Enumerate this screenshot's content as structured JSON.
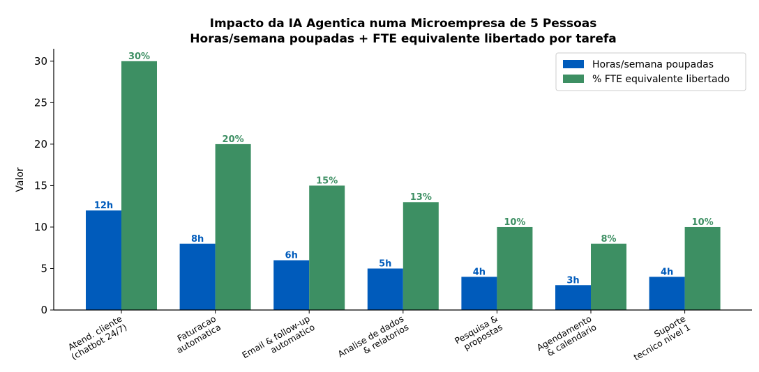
{
  "chart_data": {
    "type": "bar",
    "title": "Impacto da IA Agentica numa Microempresa de 5 Pessoas",
    "subtitle": "Horas/semana poupadas + FTE equivalente libertado por tarefa",
    "ylabel": "Valor",
    "xlabel": "",
    "ylim": [
      0,
      31.5
    ],
    "yticks": [
      "0",
      "5",
      "10",
      "15",
      "20",
      "25",
      "30"
    ],
    "categories": [
      [
        "Atend. cliente",
        "(chatbot 24/7)"
      ],
      [
        "Faturacao",
        "automatica"
      ],
      [
        "Email & follow-up",
        "automatico"
      ],
      [
        "Analise de dados",
        "& relatorios"
      ],
      [
        "Pesquisa &",
        "propostas"
      ],
      [
        "Agendamento",
        "& calendario"
      ],
      [
        "Suporte",
        "tecnico nivel 1"
      ]
    ],
    "series": [
      {
        "name": "Horas/semana poupadas",
        "color": "#005bbb",
        "values": [
          12,
          8,
          6,
          5,
          4,
          3,
          4
        ],
        "labels": [
          "12h",
          "8h",
          "6h",
          "5h",
          "4h",
          "3h",
          "4h"
        ]
      },
      {
        "name": "% FTE equivalente libertado",
        "color": "#3d8f63",
        "values": [
          30,
          20,
          15,
          13,
          10,
          8,
          10
        ],
        "labels": [
          "30%",
          "20%",
          "15%",
          "13%",
          "10%",
          "8%",
          "10%"
        ]
      }
    ],
    "legend_position": "top-right",
    "grid": false
  }
}
